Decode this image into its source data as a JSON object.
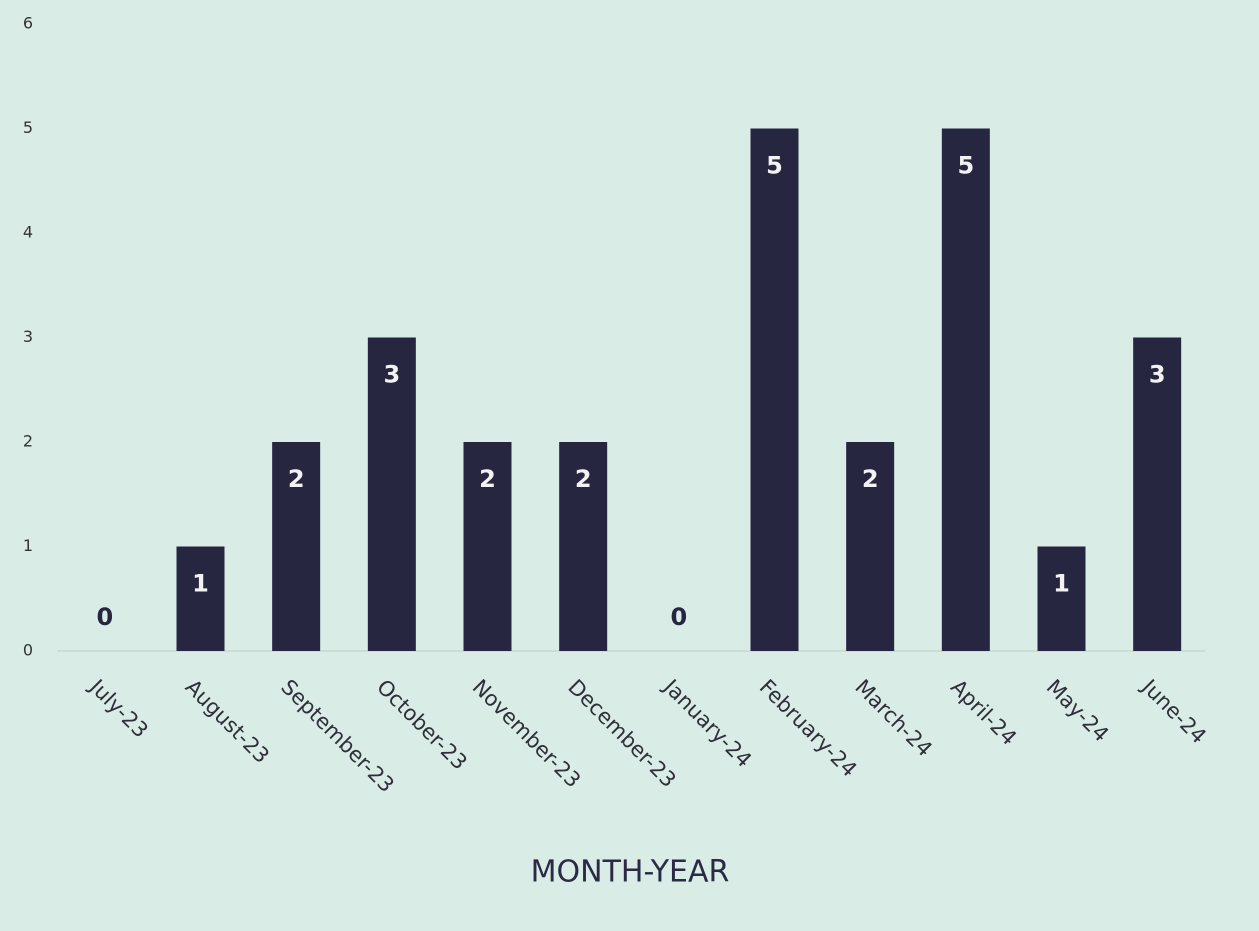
{
  "chart_data": {
    "type": "bar",
    "xlabel": "MONTH-YEAR",
    "categories": [
      "July-23",
      "August-23",
      "September-23",
      "October-23",
      "November-23",
      "December-23",
      "January-24",
      "February-24",
      "March-24",
      "April-24",
      "May-24",
      "June-24"
    ],
    "values": [
      0,
      1,
      2,
      3,
      2,
      2,
      0,
      5,
      2,
      5,
      1,
      3
    ],
    "color": "#272640",
    "ylim": [
      0,
      6
    ],
    "yticks": [
      0,
      1,
      2,
      3,
      4,
      5,
      6
    ],
    "grid": false
  }
}
